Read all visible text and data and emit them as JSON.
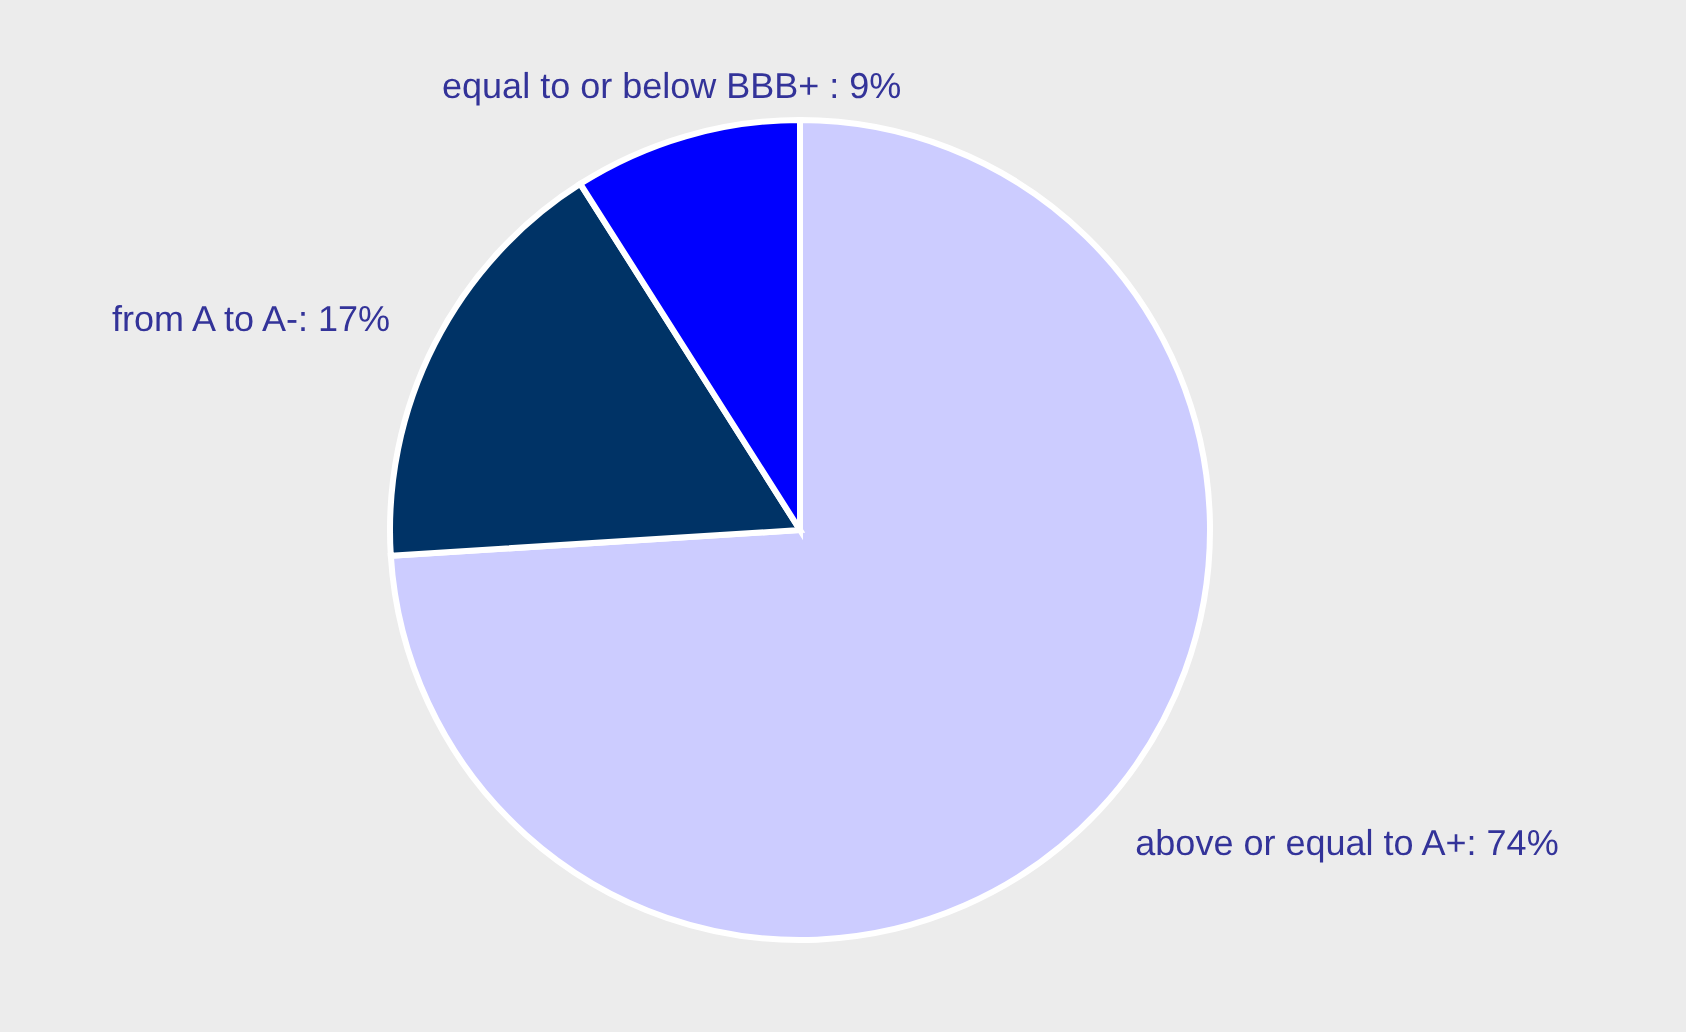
{
  "chart_data": {
    "type": "pie",
    "categories": [
      "above or equal to A+: 74%",
      "from A to A-: 17%",
      "equal to or below BBB+ : 9%"
    ],
    "values": [
      74,
      17,
      9
    ],
    "colors": [
      "#ccccff",
      "#003366",
      "#0000ff"
    ]
  }
}
